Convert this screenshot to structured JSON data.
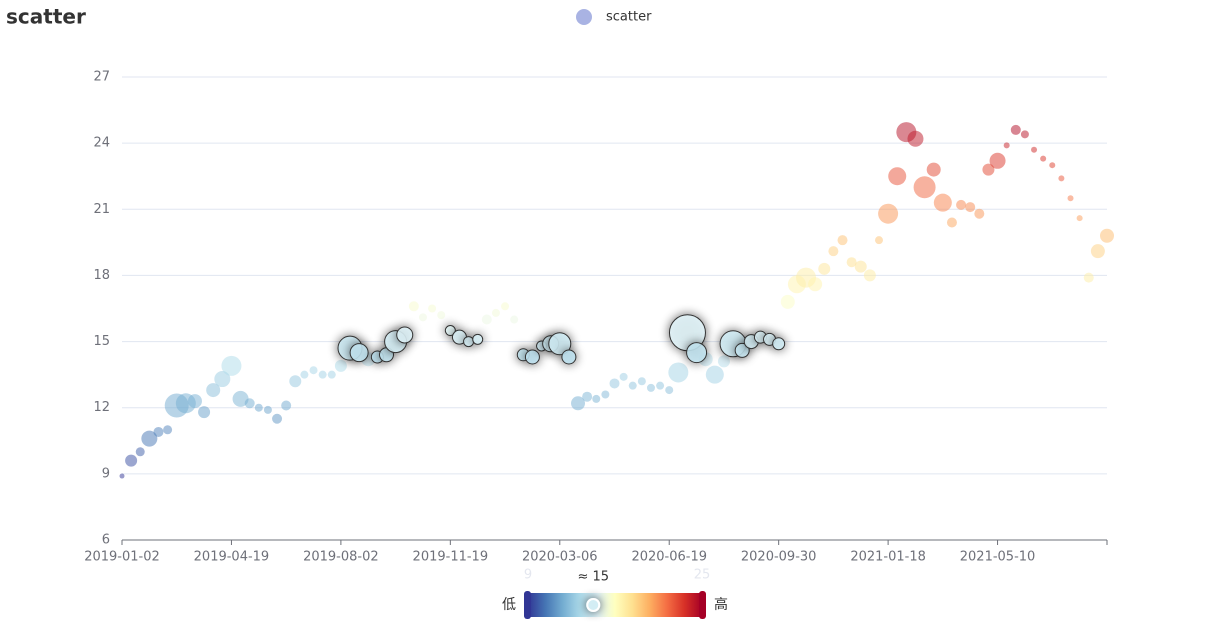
{
  "chart_data": {
    "type": "scatter",
    "title": "scatter",
    "categories": [
      "2019-01-02",
      null,
      null,
      null,
      null,
      null,
      null,
      null,
      null,
      null,
      null,
      null,
      "2019-04-19",
      null,
      null,
      null,
      null,
      null,
      null,
      null,
      null,
      null,
      null,
      null,
      "2019-08-02",
      null,
      null,
      null,
      null,
      null,
      null,
      null,
      null,
      null,
      null,
      null,
      "2019-11-19",
      null,
      null,
      null,
      null,
      null,
      null,
      null,
      null,
      null,
      null,
      null,
      "2020-03-06",
      null,
      null,
      null,
      null,
      null,
      null,
      null,
      null,
      null,
      null,
      null,
      "2020-06-19",
      null,
      null,
      null,
      null,
      null,
      null,
      null,
      null,
      null,
      null,
      null,
      "2020-09-30",
      null,
      null,
      null,
      null,
      null,
      null,
      null,
      null,
      null,
      null,
      null,
      "2021-01-18",
      null,
      null,
      null,
      null,
      null,
      null,
      null,
      null,
      null,
      null,
      null,
      "2021-05-10",
      null,
      null,
      null,
      null,
      null,
      null,
      null,
      null,
      null,
      null,
      null,
      null
    ],
    "series": [
      {
        "name": "scatter",
        "color": "#a9b3e3",
        "values": [
          8.9,
          9.6,
          10.0,
          10.6,
          10.9,
          11.0,
          12.1,
          12.2,
          12.3,
          11.8,
          12.8,
          13.3,
          13.9,
          12.4,
          12.2,
          12.0,
          11.9,
          11.5,
          12.1,
          13.2,
          13.5,
          13.7,
          13.5,
          13.5,
          13.9,
          14.7,
          14.5,
          14.2,
          14.3,
          14.4,
          15.0,
          15.3,
          16.6,
          16.1,
          16.5,
          16.2,
          15.5,
          15.2,
          15.0,
          15.1,
          16.0,
          16.3,
          16.6,
          16.0,
          14.4,
          14.3,
          14.8,
          14.9,
          14.9,
          14.3,
          12.2,
          12.5,
          12.4,
          12.6,
          13.1,
          13.4,
          13.0,
          13.2,
          12.9,
          13.0,
          12.8,
          13.6,
          15.4,
          14.5,
          14.2,
          13.5,
          14.1,
          14.9,
          14.6,
          15.0,
          15.2,
          15.1,
          14.9,
          16.8,
          17.6,
          17.9,
          17.6,
          18.3,
          19.1,
          19.6,
          18.6,
          18.4,
          18.0,
          19.6,
          20.8,
          22.5,
          24.5,
          24.2,
          22.0,
          22.8,
          21.3,
          20.4,
          21.2,
          21.1,
          20.8,
          22.8,
          23.2,
          23.9,
          24.6,
          24.4,
          23.7,
          23.3,
          23.0,
          22.4,
          21.5,
          20.6,
          17.9,
          19.1,
          19.8
        ],
        "sizes": [
          5,
          12,
          9,
          16,
          10,
          9,
          24,
          20,
          14,
          12,
          14,
          16,
          20,
          16,
          10,
          8,
          8,
          10,
          10,
          12,
          8,
          8,
          8,
          8,
          12,
          24,
          18,
          14,
          12,
          14,
          22,
          16,
          10,
          8,
          8,
          8,
          10,
          14,
          10,
          10,
          10,
          8,
          8,
          8,
          12,
          14,
          10,
          16,
          22,
          14,
          14,
          10,
          8,
          8,
          10,
          8,
          8,
          8,
          8,
          8,
          8,
          20,
          36,
          20,
          14,
          18,
          12,
          26,
          14,
          14,
          12,
          12,
          12,
          14,
          18,
          20,
          14,
          12,
          10,
          10,
          10,
          12,
          12,
          8,
          20,
          18,
          20,
          16,
          22,
          14,
          18,
          10,
          10,
          10,
          10,
          12,
          16,
          6,
          10,
          8,
          6,
          6,
          6,
          6,
          6,
          6,
          10,
          14,
          14
        ]
      }
    ],
    "ylim": [
      6,
      27
    ],
    "yticks": [
      6,
      9,
      12,
      15,
      18,
      21,
      24,
      27
    ],
    "grid": true,
    "visual_map": {
      "min": 9,
      "max": 25,
      "text_low": "低",
      "text_high": "高",
      "hover": {
        "value": 15,
        "label": "≈ 15"
      },
      "colors": [
        "#313695",
        "#4575b4",
        "#74add1",
        "#abd9e9",
        "#e0f3f8",
        "#ffffbf",
        "#fee090",
        "#fdae61",
        "#f46d43",
        "#d73027",
        "#a50026"
      ]
    }
  }
}
